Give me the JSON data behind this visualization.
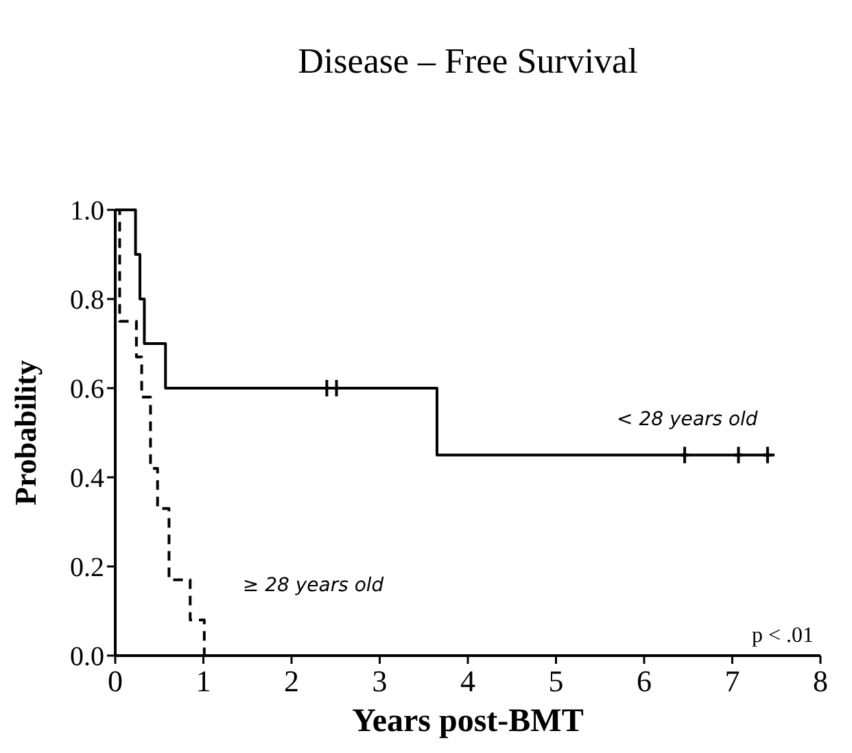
{
  "chart_data": {
    "type": "step",
    "title": "Disease – Free Survival",
    "xlabel": "Years post-BMT",
    "ylabel": "Probability",
    "xlim": [
      0,
      8
    ],
    "ylim": [
      0,
      1
    ],
    "xticks": [
      0,
      1,
      2,
      3,
      4,
      5,
      6,
      7,
      8
    ],
    "yticks": [
      {
        "value": 0,
        "label": "0.0"
      },
      {
        "value": 0.2,
        "label": "0.2"
      },
      {
        "value": 0.4,
        "label": "0.4"
      },
      {
        "value": 0.6,
        "label": "0.6"
      },
      {
        "value": 0.8,
        "label": "0.8"
      },
      {
        "value": 1,
        "label": "1.0"
      }
    ],
    "annotations": [
      "p < .01"
    ],
    "series": [
      {
        "name": "< 28 years old",
        "color": "#000000",
        "line_style": "solid",
        "x": [
          0,
          0.23,
          0.28,
          0.33,
          0.57,
          3.65,
          7.48
        ],
        "values": [
          1,
          0.9,
          0.8,
          0.7,
          0.6,
          0.45,
          0.45
        ]
      },
      {
        "name": "≥ 28 years old",
        "color": "#000000",
        "line_style": "dashed",
        "x": [
          0,
          0.05,
          0.24,
          0.3,
          0.4,
          0.48,
          0.61,
          0.85,
          1.01
        ],
        "values": [
          1,
          0.75,
          0.67,
          0.58,
          0.42,
          0.33,
          0.17,
          0.08,
          0
        ]
      },
      {
        "type": "scatter",
        "marker": "cross",
        "color": "#000000",
        "x": [
          2.4,
          2.51,
          6.46,
          7.07,
          7.4
        ],
        "values": [
          0.6,
          0.6,
          0.45,
          0.45,
          0.45
        ]
      }
    ]
  }
}
